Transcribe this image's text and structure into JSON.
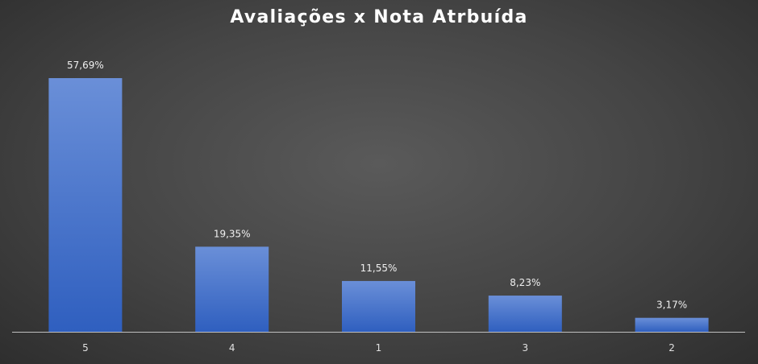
{
  "chart_data": {
    "type": "bar",
    "title": "Avaliações x Nota Atrbuída",
    "xlabel": "",
    "ylabel": "",
    "categories": [
      "5",
      "4",
      "1",
      "3",
      "2"
    ],
    "values": [
      57.69,
      19.35,
      11.55,
      8.23,
      3.17
    ],
    "data_labels": [
      "57,69%",
      "19,35%",
      "11,55%",
      "8,23%",
      "3,17%"
    ],
    "ylim": [
      0,
      57.69
    ],
    "grid": false,
    "legend": "none",
    "colors": {
      "bar_top": "#6a8fd8",
      "bar_bottom": "#2f5fbf",
      "axis": "#bfbfbf",
      "title": "#ffffff",
      "text": "#e0e0e0"
    }
  }
}
